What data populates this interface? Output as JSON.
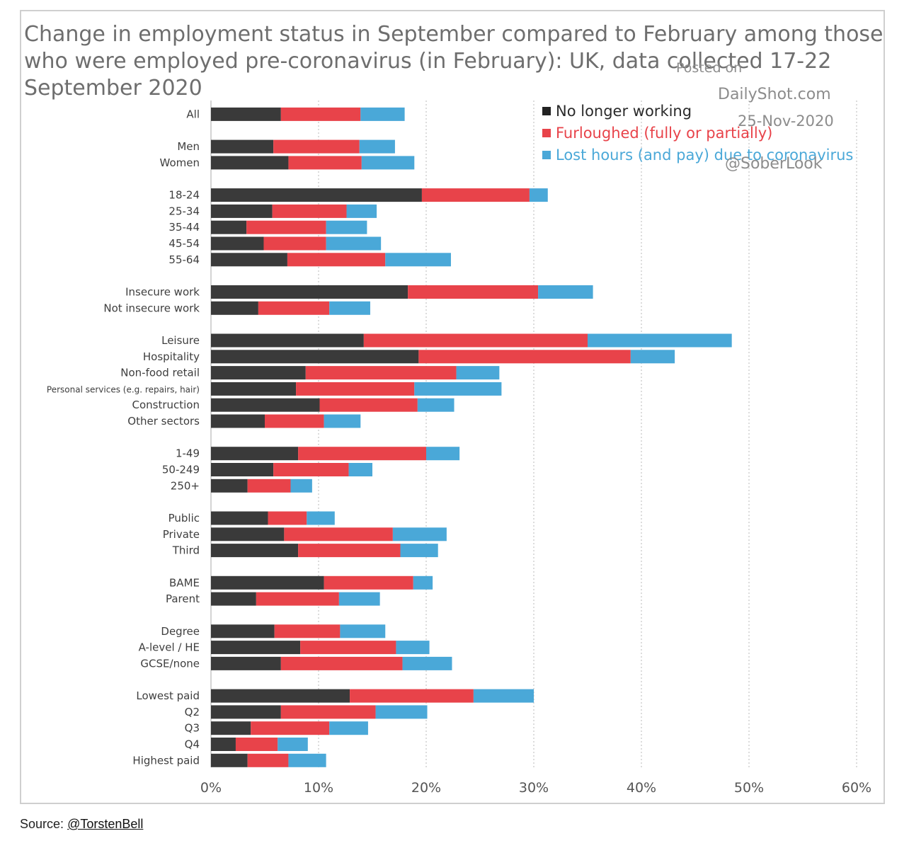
{
  "chart_data": {
    "type": "bar",
    "orientation": "horizontal",
    "stacked": true,
    "title": "Change in employment status in September compared to February among those who were employed pre-coronavirus (in February): UK, data collected 17-22 September 2020",
    "xlabel": "",
    "ylabel": "",
    "xlim": [
      0,
      60
    ],
    "xticks": [
      0,
      10,
      20,
      30,
      40,
      50,
      60
    ],
    "xtick_labels": [
      "0%",
      "10%",
      "20%",
      "30%",
      "40%",
      "50%",
      "60%"
    ],
    "grid": "vertical dotted",
    "legend_position": "top-right",
    "groups": [
      [
        "All"
      ],
      [
        "Men",
        "Women"
      ],
      [
        "18-24",
        "25-34",
        "35-44",
        "45-54",
        "55-64"
      ],
      [
        "Insecure work",
        "Not insecure work"
      ],
      [
        "Leisure",
        "Hospitality",
        "Non-food retail",
        "Personal services (e.g. repairs, hair)",
        "Construction",
        "Other sectors"
      ],
      [
        "1-49",
        "50-249",
        "250+"
      ],
      [
        "Public",
        "Private",
        "Third"
      ],
      [
        "BAME",
        "Parent"
      ],
      [
        "Degree",
        "A-level / HE",
        "GCSE/none"
      ],
      [
        "Lowest paid",
        "Q2",
        "Q3",
        "Q4",
        "Highest paid"
      ]
    ],
    "categories": [
      "All",
      "Men",
      "Women",
      "18-24",
      "25-34",
      "35-44",
      "45-54",
      "55-64",
      "Insecure work",
      "Not insecure work",
      "Leisure",
      "Hospitality",
      "Non-food retail",
      "Personal services (e.g. repairs, hair)",
      "Construction",
      "Other sectors",
      "1-49",
      "50-249",
      "250+",
      "Public",
      "Private",
      "Third",
      "BAME",
      "Parent",
      "Degree",
      "A-level / HE",
      "GCSE/none",
      "Lowest paid",
      "Q2",
      "Q3",
      "Q4",
      "Highest paid"
    ],
    "series": [
      {
        "name": "No longer working",
        "color": "#3a3a3a",
        "values": [
          6.5,
          5.8,
          7.2,
          19.6,
          5.7,
          3.3,
          4.9,
          7.1,
          18.3,
          4.4,
          14.2,
          19.3,
          8.8,
          7.9,
          10.1,
          5.0,
          8.1,
          5.8,
          3.4,
          5.3,
          6.8,
          8.1,
          10.5,
          4.2,
          5.9,
          8.3,
          6.5,
          12.9,
          6.5,
          3.7,
          2.3,
          3.4
        ]
      },
      {
        "name": "Furloughed (fully or partially)",
        "color": "#e8434a",
        "values": [
          7.4,
          8.0,
          6.8,
          10.0,
          6.9,
          7.4,
          5.8,
          9.1,
          12.1,
          6.6,
          20.8,
          19.7,
          14.0,
          11.0,
          9.1,
          5.5,
          11.9,
          7.0,
          4.0,
          3.6,
          10.1,
          9.5,
          8.3,
          7.7,
          6.1,
          8.9,
          11.3,
          11.5,
          8.8,
          7.3,
          3.9,
          3.8
        ]
      },
      {
        "name": "Lost hours (and pay) due to coronavirus",
        "color": "#4aa8d8",
        "values": [
          4.1,
          3.3,
          4.9,
          1.7,
          2.8,
          3.8,
          5.1,
          6.1,
          5.1,
          3.8,
          13.4,
          4.1,
          4.0,
          8.1,
          3.4,
          3.4,
          3.1,
          2.2,
          2.0,
          2.6,
          5.0,
          3.5,
          1.8,
          3.8,
          4.2,
          3.1,
          4.6,
          5.6,
          4.8,
          3.6,
          2.8,
          3.5
        ]
      }
    ]
  },
  "watermark": {
    "line1": "Posted on",
    "line2": "DailyShot.com",
    "line3": "25-Nov-2020",
    "line4": "@SoberLook"
  },
  "source": {
    "label": "Source:",
    "link_text": "@TorstenBell"
  }
}
